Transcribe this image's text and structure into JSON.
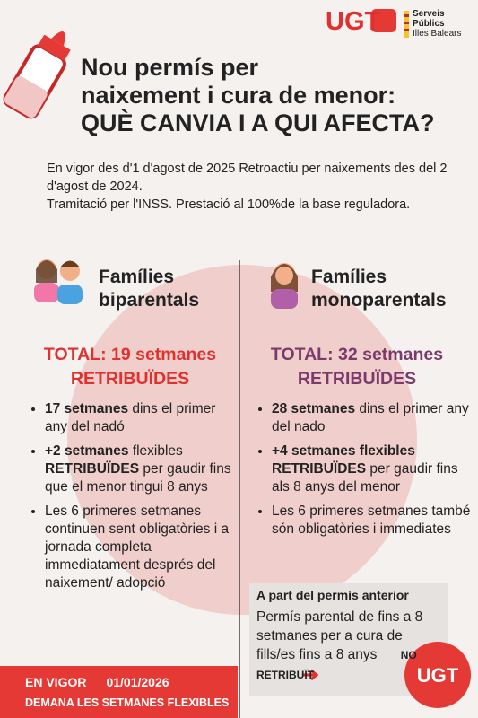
{
  "header": {
    "brand": "UGT",
    "org": [
      "Serveis",
      "Públics",
      "Illes Balears"
    ]
  },
  "title": [
    "Nou permís per",
    "naixement i cura de menor:",
    "QUÈ CANVIA I A QUI AFECTA?"
  ],
  "intro": [
    "En vigor des d'1 d'agost de 2025 Retroactiu per naixements des del 2 d'agost de 2024.",
    "Tramitació per l'INSS. Prestació al 100%de la base reguladora."
  ],
  "columns": [
    {
      "heading": [
        "Famílies",
        "biparentals"
      ],
      "total": [
        "TOTAL: 19 setmanes",
        "RETRIBUÏDES"
      ],
      "color": "#e0312e",
      "bullets": [
        [
          {
            "text": "17 setmanes",
            "bold": true
          },
          {
            "text": " dins el primer any del nadó"
          }
        ],
        [
          {
            "text": "+2 setmanes",
            "bold": true
          },
          {
            "text": " flexibles "
          },
          {
            "text": "RETRIBUÏDES",
            "bold": true
          },
          {
            "text": " per gaudir fins que el menor tingui 8 anys"
          }
        ],
        [
          {
            "text": "Les 6 primeres setmanes continuen sent obligatòries i a jornada completa immediatament després del naixement/ adopció"
          }
        ]
      ]
    },
    {
      "heading": [
        "Famílies",
        "monoparentals"
      ],
      "total": [
        "TOTAL: 32 setmanes",
        "RETRIBUÏDES"
      ],
      "color": "#7a3a6c",
      "bullets": [
        [
          {
            "text": "28 setmanes",
            "bold": true
          },
          {
            "text": " dins el primer any del nado"
          }
        ],
        [
          {
            "text": "+4 setmanes flexibles RETRIBUÏDES",
            "bold": true
          },
          {
            "text": " per gaudir fins als 8 anys del menor"
          }
        ],
        [
          {
            "text": "Les 6 primeres setmanes també són obligatòries i immediates"
          }
        ]
      ]
    }
  ],
  "note": {
    "heading": "A part del permís anterior",
    "text": "Permís parental de fins a 8 setmanes per a cura de fills/es fins a 8 anys",
    "tag": "NO RETRIBUÏT"
  },
  "footer": {
    "label": "EN VIGOR",
    "date": "01/01/2026",
    "cta": "DEMANA LES SETMANES FLEXIBLES",
    "badge": "UGT"
  }
}
